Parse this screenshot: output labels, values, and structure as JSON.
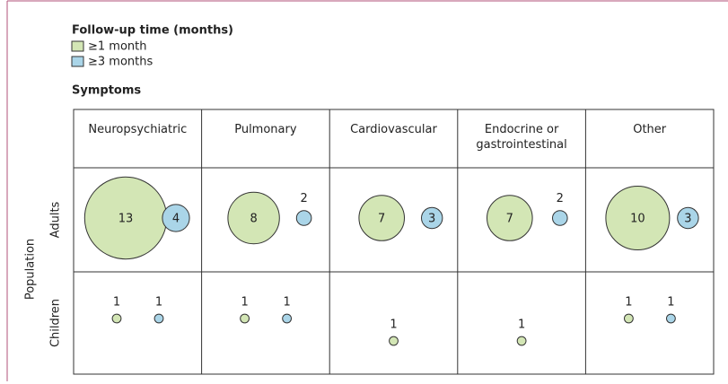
{
  "chart_data": {
    "type": "bubble",
    "legend_title": "Follow-up time (months)",
    "x_label": "Symptoms",
    "y_label": "Population",
    "categories": [
      "Neuropsychiatric",
      "Pulmonary",
      "Cardiovascular",
      "Endocrine or gastrointestinal",
      "Other"
    ],
    "rows": [
      "Adults",
      "Children"
    ],
    "series": [
      {
        "name": "≥1 month",
        "color": "#d3e6b5",
        "values": [
          [
            13,
            8,
            7,
            7,
            10
          ],
          [
            1,
            1,
            1,
            1,
            1
          ]
        ]
      },
      {
        "name": "≥3 months",
        "color": "#aad5e8",
        "values": [
          [
            4,
            2,
            3,
            2,
            3
          ],
          [
            1,
            1,
            null,
            null,
            1
          ]
        ]
      }
    ]
  }
}
